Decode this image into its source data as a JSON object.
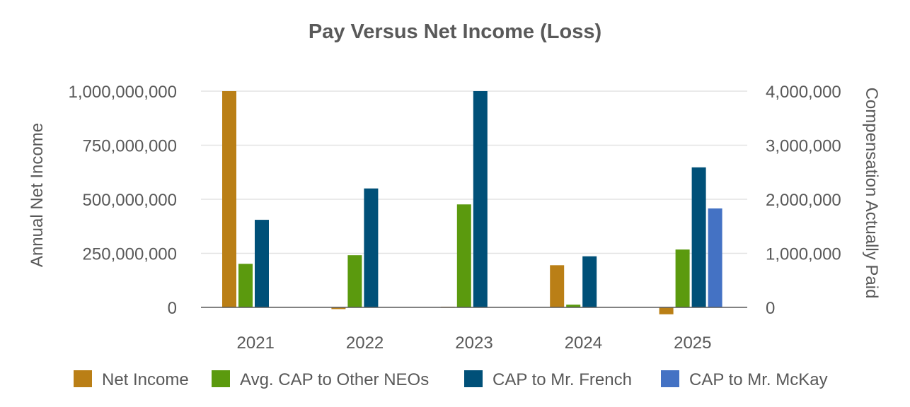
{
  "chart_data": {
    "type": "bar",
    "title": "Pay Versus Net Income (Loss)",
    "categories": [
      "2021",
      "2022",
      "2023",
      "2024",
      "2025"
    ],
    "left_axis": {
      "label": "Annual Net Income",
      "range": [
        0,
        1000000000
      ],
      "ticks": [
        "0",
        "250,000,000",
        "500,000,000",
        "750,000,000",
        "1,000,000,000"
      ]
    },
    "right_axis": {
      "label": "Compensation Actually Paid",
      "range": [
        0,
        4000000
      ],
      "ticks": [
        "0",
        "1,000,000",
        "2,000,000",
        "3,000,000",
        "4,000,000"
      ]
    },
    "grid": true,
    "legend_position": "bottom",
    "series": [
      {
        "name": "Net Income",
        "axis": "left",
        "color": "#BA7F16",
        "values": [
          1000000000,
          -8000000,
          3000000,
          195000000,
          -32000000
        ]
      },
      {
        "name": "Avg. CAP to Other NEOs",
        "axis": "right",
        "color": "#5B9A0E",
        "values": [
          805000,
          965000,
          1905000,
          50000,
          1070000
        ]
      },
      {
        "name": "CAP to Mr. French",
        "axis": "right",
        "color": "#005078",
        "values": [
          1620000,
          2200000,
          4000000,
          945000,
          2590000
        ]
      },
      {
        "name": "CAP to Mr. McKay",
        "axis": "right",
        "color": "#4472C4",
        "values": [
          null,
          null,
          null,
          null,
          1830000
        ]
      }
    ]
  }
}
